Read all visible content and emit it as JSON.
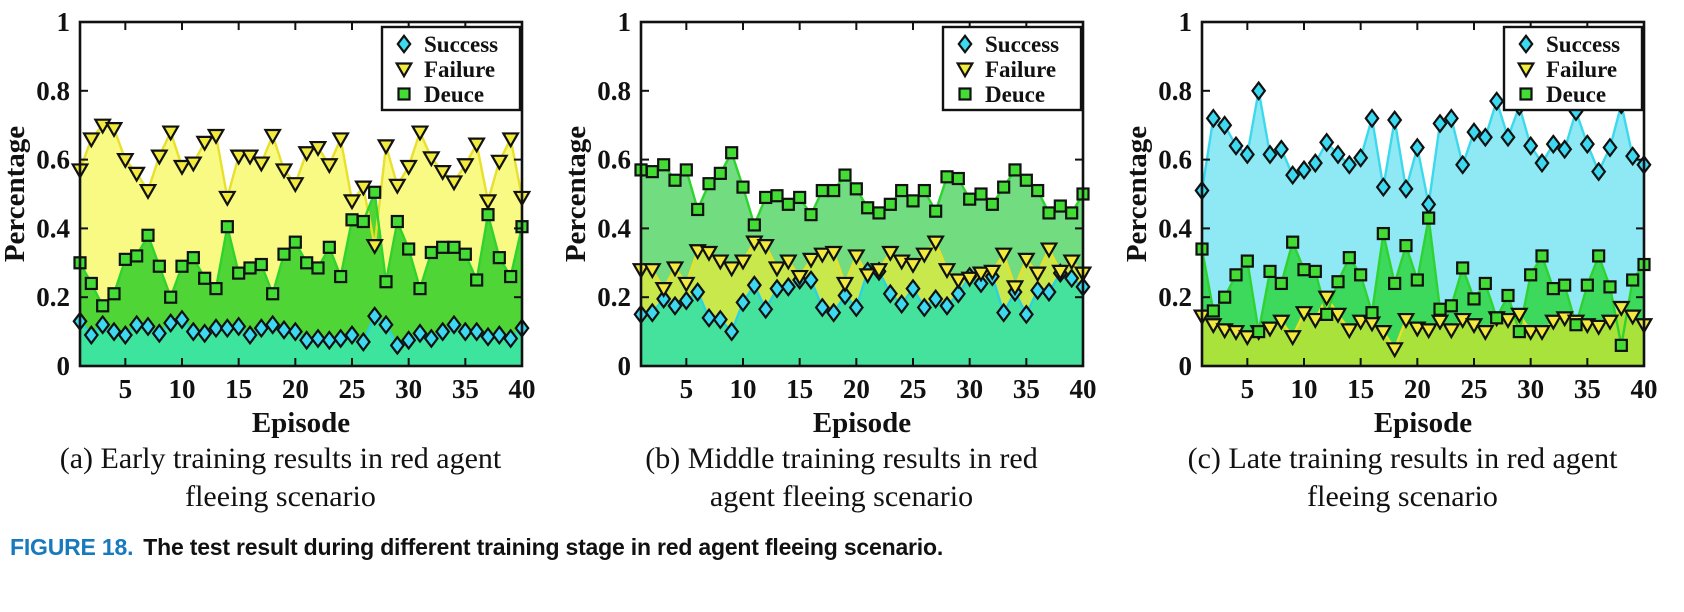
{
  "figure": {
    "caption_label": "FIGURE 18.",
    "caption_text": "The test result during different training stage in red agent fleeing scenario.",
    "caption_label_color": "#1779BE"
  },
  "panels": [
    {
      "caption_line1": "(a) Early training results in red agent",
      "caption_line2": "fleeing scenario"
    },
    {
      "caption_line1": "(b) Middle training results in red",
      "caption_line2": "agent fleeing scenario"
    },
    {
      "caption_line1": "(c) Late training results in red agent",
      "caption_line2": "fleeing scenario"
    }
  ],
  "chart_data": [
    {
      "type": "area",
      "panel": "a",
      "title": "Early training results in red agent fleeing scenario",
      "xlabel": "Episode",
      "ylabel": "Percentage",
      "xlim": [
        1,
        40
      ],
      "ylim": [
        0,
        1
      ],
      "xticks": [
        5,
        10,
        15,
        20,
        25,
        30,
        35,
        40
      ],
      "yticks": [
        0,
        0.2,
        0.4,
        0.6,
        0.8,
        1
      ],
      "grid": false,
      "legend_position": "top-right",
      "area_draw_order": [
        "Failure",
        "Deuce",
        "Success"
      ],
      "line_draw_order": [
        "Success",
        "Failure",
        "Deuce"
      ],
      "series": [
        {
          "name": "Success",
          "marker": "diamond",
          "line_color": "#28D3E6",
          "marker_fill": "#3CD9F0",
          "area_fill": "#3DE49E",
          "values": [
            0.13,
            0.09,
            0.12,
            0.1,
            0.09,
            0.12,
            0.115,
            0.095,
            0.125,
            0.135,
            0.1,
            0.095,
            0.11,
            0.11,
            0.115,
            0.09,
            0.11,
            0.12,
            0.105,
            0.1,
            0.075,
            0.08,
            0.075,
            0.08,
            0.09,
            0.07,
            0.145,
            0.12,
            0.06,
            0.075,
            0.095,
            0.08,
            0.1,
            0.12,
            0.1,
            0.1,
            0.085,
            0.09,
            0.08,
            0.11
          ]
        },
        {
          "name": "Failure",
          "marker": "triangle-down",
          "line_color": "#E9E02A",
          "marker_fill": "#F2EA3C",
          "area_fill": "#F8FA84",
          "values": [
            0.57,
            0.66,
            0.7,
            0.69,
            0.6,
            0.56,
            0.51,
            0.61,
            0.68,
            0.58,
            0.59,
            0.65,
            0.67,
            0.49,
            0.61,
            0.61,
            0.59,
            0.67,
            0.57,
            0.53,
            0.62,
            0.635,
            0.585,
            0.66,
            0.48,
            0.52,
            0.35,
            0.64,
            0.525,
            0.58,
            0.68,
            0.605,
            0.565,
            0.535,
            0.585,
            0.645,
            0.48,
            0.595,
            0.66,
            0.49
          ]
        },
        {
          "name": "Deuce",
          "marker": "square",
          "line_color": "#2ED32E",
          "marker_fill": "#43DC35",
          "area_fill": "#4FD636",
          "values": [
            0.3,
            0.24,
            0.175,
            0.21,
            0.31,
            0.32,
            0.38,
            0.29,
            0.2,
            0.29,
            0.315,
            0.255,
            0.225,
            0.405,
            0.27,
            0.285,
            0.295,
            0.21,
            0.325,
            0.36,
            0.3,
            0.285,
            0.345,
            0.26,
            0.425,
            0.42,
            0.505,
            0.245,
            0.42,
            0.34,
            0.225,
            0.33,
            0.345,
            0.345,
            0.325,
            0.25,
            0.44,
            0.315,
            0.26,
            0.405
          ]
        }
      ]
    },
    {
      "type": "area",
      "panel": "b",
      "title": "Middle training results in red agent fleeing scenario",
      "xlabel": "Episode",
      "ylabel": "Percentage",
      "xlim": [
        1,
        40
      ],
      "ylim": [
        0,
        1
      ],
      "xticks": [
        5,
        10,
        15,
        20,
        25,
        30,
        35,
        40
      ],
      "yticks": [
        0,
        0.2,
        0.4,
        0.6,
        0.8,
        1
      ],
      "grid": false,
      "legend_position": "top-right",
      "area_draw_order": [
        "Deuce",
        "Failure",
        "Success"
      ],
      "line_draw_order": [
        "Success",
        "Failure",
        "Deuce"
      ],
      "series": [
        {
          "name": "Success",
          "marker": "diamond",
          "line_color": "#28D3E6",
          "marker_fill": "#3CD9F0",
          "area_fill": "#45E29D",
          "values": [
            0.15,
            0.155,
            0.195,
            0.175,
            0.19,
            0.215,
            0.14,
            0.135,
            0.1,
            0.185,
            0.235,
            0.165,
            0.225,
            0.23,
            0.25,
            0.25,
            0.17,
            0.155,
            0.205,
            0.17,
            0.275,
            0.275,
            0.21,
            0.18,
            0.225,
            0.17,
            0.195,
            0.175,
            0.21,
            0.26,
            0.24,
            0.26,
            0.155,
            0.215,
            0.15,
            0.22,
            0.215,
            0.27,
            0.255,
            0.23
          ]
        },
        {
          "name": "Failure",
          "marker": "triangle-down",
          "line_color": "#E9E02A",
          "marker_fill": "#F2EA3C",
          "area_fill": "#C8E84C",
          "values": [
            0.28,
            0.28,
            0.225,
            0.285,
            0.24,
            0.335,
            0.33,
            0.305,
            0.285,
            0.305,
            0.36,
            0.35,
            0.285,
            0.305,
            0.26,
            0.31,
            0.325,
            0.33,
            0.24,
            0.32,
            0.265,
            0.28,
            0.33,
            0.305,
            0.295,
            0.325,
            0.36,
            0.28,
            0.25,
            0.255,
            0.27,
            0.275,
            0.325,
            0.23,
            0.31,
            0.27,
            0.34,
            0.275,
            0.305,
            0.27
          ]
        },
        {
          "name": "Deuce",
          "marker": "square",
          "line_color": "#2ED32E",
          "marker_fill": "#43DC35",
          "area_fill": "#72DC80",
          "values": [
            0.57,
            0.565,
            0.585,
            0.54,
            0.57,
            0.455,
            0.53,
            0.56,
            0.62,
            0.52,
            0.41,
            0.49,
            0.495,
            0.47,
            0.49,
            0.44,
            0.51,
            0.51,
            0.555,
            0.515,
            0.46,
            0.445,
            0.47,
            0.51,
            0.48,
            0.51,
            0.45,
            0.55,
            0.545,
            0.485,
            0.5,
            0.47,
            0.52,
            0.57,
            0.54,
            0.51,
            0.445,
            0.465,
            0.445,
            0.5
          ]
        }
      ]
    },
    {
      "type": "area",
      "panel": "c",
      "title": "Late training results in red agent fleeing scenario",
      "xlabel": "Episode",
      "ylabel": "Percentage",
      "xlim": [
        1,
        40
      ],
      "ylim": [
        0,
        1
      ],
      "xticks": [
        5,
        10,
        15,
        20,
        25,
        30,
        35,
        40
      ],
      "yticks": [
        0,
        0.2,
        0.4,
        0.6,
        0.8,
        1
      ],
      "grid": false,
      "legend_position": "top-right",
      "area_draw_order": [
        "Success",
        "Deuce",
        "Failure"
      ],
      "line_draw_order": [
        "Success",
        "Failure",
        "Deuce"
      ],
      "series": [
        {
          "name": "Success",
          "marker": "diamond",
          "line_color": "#3CD9EC",
          "marker_fill": "#3CD9F0",
          "area_fill": "#8EE9F4",
          "values": [
            0.51,
            0.72,
            0.7,
            0.64,
            0.615,
            0.8,
            0.615,
            0.63,
            0.555,
            0.57,
            0.59,
            0.65,
            0.615,
            0.585,
            0.605,
            0.72,
            0.52,
            0.715,
            0.515,
            0.635,
            0.47,
            0.705,
            0.72,
            0.585,
            0.68,
            0.665,
            0.77,
            0.665,
            0.755,
            0.64,
            0.59,
            0.645,
            0.63,
            0.74,
            0.645,
            0.565,
            0.635,
            0.76,
            0.61,
            0.585
          ]
        },
        {
          "name": "Failure",
          "marker": "triangle-down",
          "line_color": "#E9E02A",
          "marker_fill": "#F2EA3C",
          "area_fill": "#A9E23A",
          "values": [
            0.145,
            0.12,
            0.105,
            0.1,
            0.085,
            0.1,
            0.11,
            0.13,
            0.085,
            0.155,
            0.135,
            0.2,
            0.15,
            0.105,
            0.13,
            0.125,
            0.1,
            0.05,
            0.135,
            0.11,
            0.105,
            0.13,
            0.105,
            0.135,
            0.12,
            0.1,
            0.14,
            0.135,
            0.15,
            0.1,
            0.1,
            0.13,
            0.14,
            0.13,
            0.12,
            0.115,
            0.13,
            0.17,
            0.145,
            0.12
          ]
        },
        {
          "name": "Deuce",
          "marker": "square",
          "line_color": "#2ED32E",
          "marker_fill": "#43DC35",
          "area_fill": "#3DD95C",
          "values": [
            0.34,
            0.16,
            0.2,
            0.265,
            0.305,
            0.1,
            0.275,
            0.24,
            0.36,
            0.28,
            0.275,
            0.15,
            0.245,
            0.315,
            0.265,
            0.155,
            0.385,
            0.24,
            0.35,
            0.25,
            0.43,
            0.165,
            0.175,
            0.285,
            0.195,
            0.24,
            0.14,
            0.205,
            0.1,
            0.265,
            0.32,
            0.225,
            0.235,
            0.12,
            0.235,
            0.32,
            0.23,
            0.06,
            0.25,
            0.295
          ]
        }
      ]
    }
  ]
}
